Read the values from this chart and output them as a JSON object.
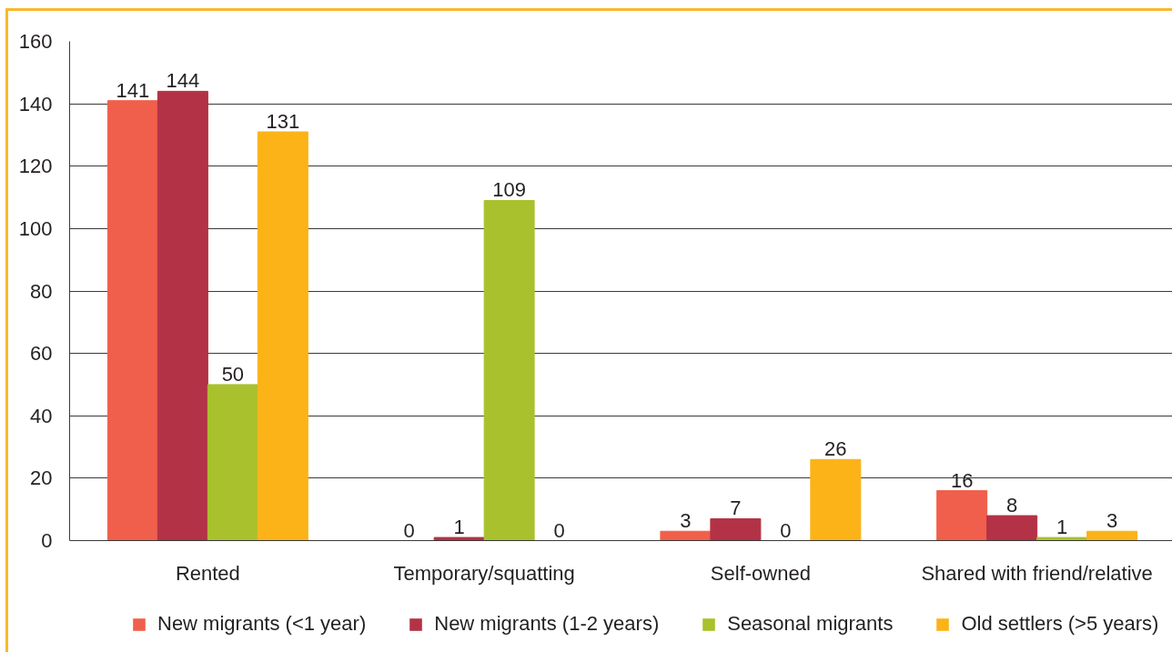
{
  "chart_data": {
    "type": "bar",
    "categories": [
      "Rented",
      "Temporary/squatting",
      "Self-owned",
      "Shared with friend/relative"
    ],
    "series": [
      {
        "name": "New migrants (<1 year)",
        "color": "#f05f4b",
        "values": [
          141,
          0,
          3,
          16
        ]
      },
      {
        "name": "New migrants (1-2 years)",
        "color": "#b33246",
        "values": [
          144,
          1,
          7,
          8
        ]
      },
      {
        "name": "Seasonal migrants",
        "color": "#a9c12c",
        "values": [
          50,
          109,
          0,
          1
        ]
      },
      {
        "name": "Old settlers (>5 years)",
        "color": "#fbb318",
        "values": [
          131,
          0,
          26,
          3
        ]
      }
    ],
    "ylim": [
      0,
      160
    ],
    "yticks": [
      0,
      20,
      40,
      60,
      80,
      100,
      120,
      140,
      160
    ],
    "grid": "y",
    "legend": "bottom",
    "data_labels": true
  }
}
